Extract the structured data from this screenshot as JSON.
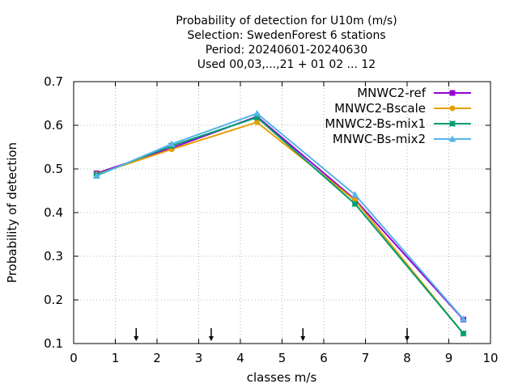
{
  "chart_data": {
    "type": "line",
    "title_lines": [
      "Probability of detection  for U10m (m/s)",
      "Selection: SwedenForest      6 stations",
      "Period: 20240601-20240630",
      "Used 00,03,...,21 + 01 02 ... 12"
    ],
    "xlabel": "classes m/s",
    "ylabel": "Probability of detection",
    "xlim": [
      0,
      10
    ],
    "ylim": [
      0.1,
      0.7
    ],
    "xticks": [
      0,
      1,
      2,
      3,
      4,
      5,
      6,
      7,
      8,
      9,
      10
    ],
    "yticks": [
      0.1,
      0.2,
      0.3,
      0.4,
      0.5,
      0.6,
      0.7
    ],
    "xtick_labels": [
      "0",
      "1",
      "2",
      "3",
      "4",
      "5",
      "6",
      "7",
      "8",
      "9",
      "10"
    ],
    "ytick_labels": [
      "0.1",
      "0.2",
      "0.3",
      "0.4",
      "0.5",
      "0.6",
      "0.7"
    ],
    "grid": true,
    "legend_position": "top-right",
    "class_boundary_arrows": [
      1.5,
      3.3,
      5.5,
      8.0
    ],
    "series": [
      {
        "name": "MNWC2-ref",
        "color": "#9400d3",
        "marker": "square",
        "x": [
          0.55,
          2.35,
          4.4,
          6.75,
          9.35
        ],
        "y": [
          0.49,
          0.548,
          0.62,
          0.43,
          0.155
        ]
      },
      {
        "name": "MNWC2-Bscale",
        "color": "#e69f00",
        "marker": "circle",
        "x": [
          0.55,
          2.35,
          4.4,
          6.75,
          9.35
        ],
        "y": [
          0.488,
          0.545,
          0.607,
          0.428,
          0.123
        ]
      },
      {
        "name": "MNWC2-Bs-mix1",
        "color": "#009e73",
        "marker": "x",
        "x": [
          0.55,
          2.35,
          4.4,
          6.75,
          9.35
        ],
        "y": [
          0.486,
          0.553,
          0.618,
          0.42,
          0.123
        ]
      },
      {
        "name": "MNWC-Bs-mix2",
        "color": "#56b4e9",
        "marker": "triangle",
        "x": [
          0.55,
          2.35,
          4.4,
          6.75,
          9.35
        ],
        "y": [
          0.484,
          0.557,
          0.627,
          0.441,
          0.156
        ]
      }
    ]
  }
}
